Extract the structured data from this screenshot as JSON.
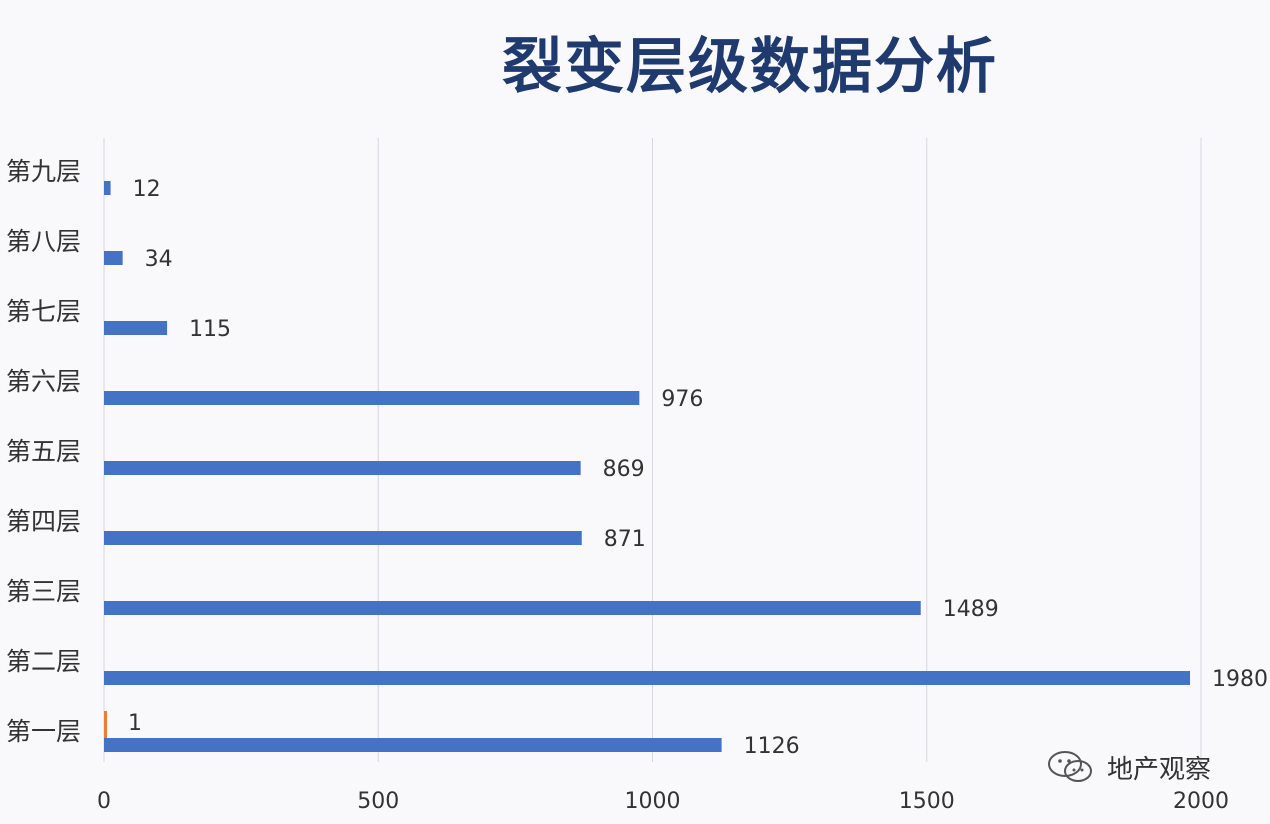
{
  "chart_data": {
    "type": "bar",
    "orientation": "horizontal",
    "title": "裂变层级数据分析",
    "categories": [
      "第九层",
      "第八层",
      "第七层",
      "第六层",
      "第五层",
      "第四层",
      "第三层",
      "第二层",
      "第一层"
    ],
    "series": [
      {
        "values": [
          12,
          34,
          115,
          976,
          869,
          871,
          1489,
          1980,
          1126
        ],
        "color": "#4472c4"
      },
      {
        "values": [
          null,
          null,
          null,
          null,
          null,
          null,
          null,
          null,
          1
        ],
        "color": "#ed7d31"
      }
    ],
    "xlim": [
      0,
      2000
    ],
    "xticks": [
      0,
      500,
      1000,
      1500,
      2000
    ],
    "grid": true,
    "xlabel": "",
    "ylabel": ""
  },
  "watermark": {
    "text": "地产观察",
    "icon": "wechat-icon"
  }
}
